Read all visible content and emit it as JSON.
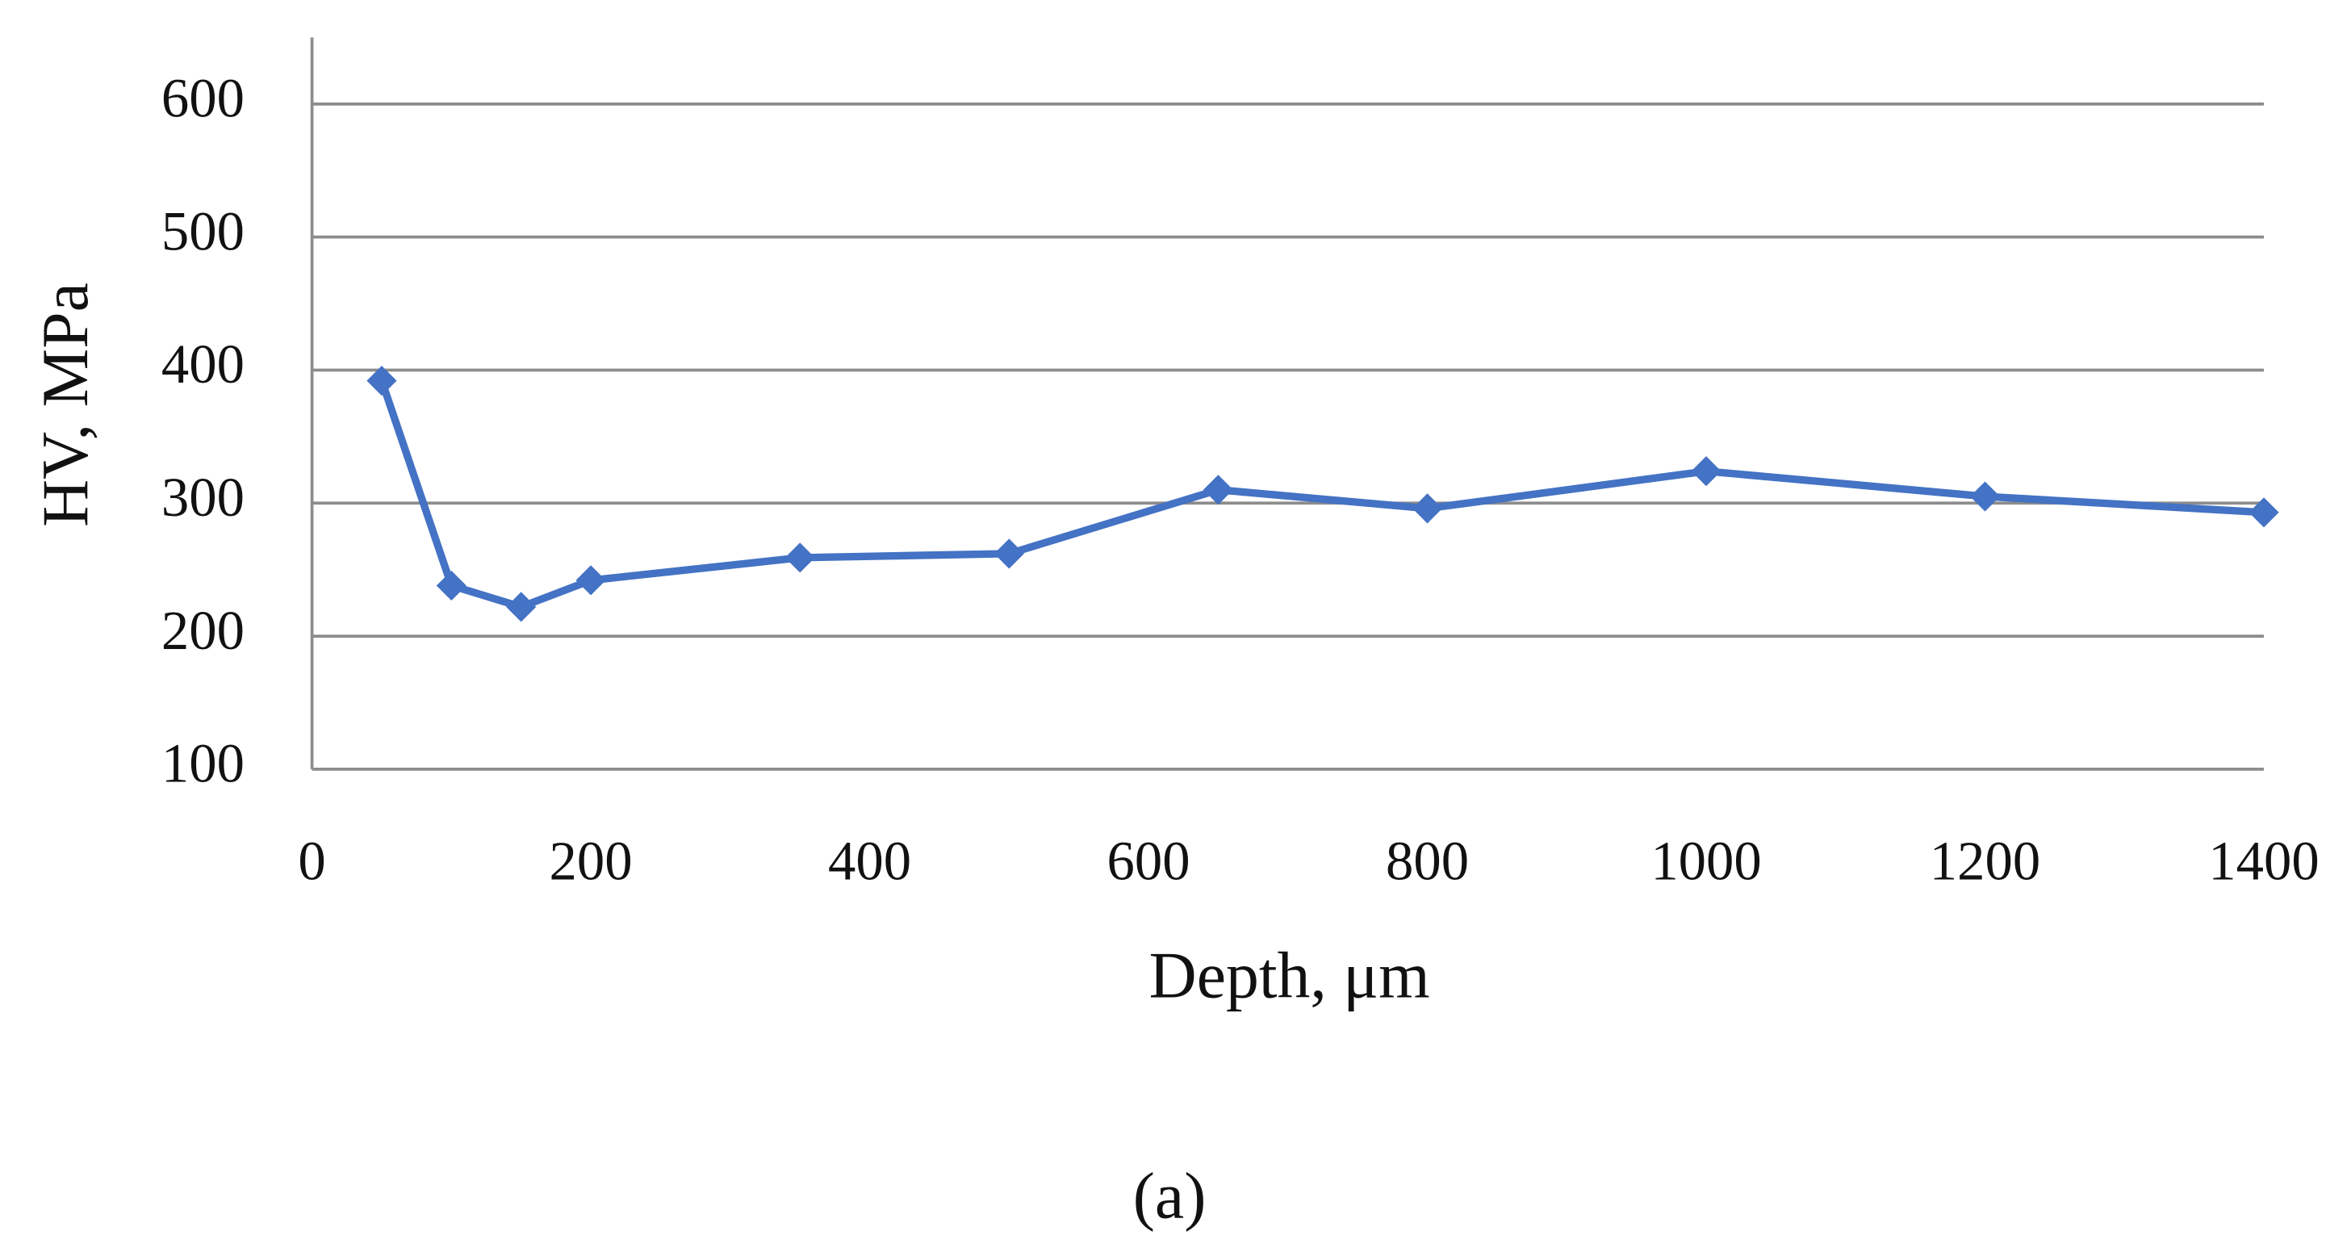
{
  "chart_data": {
    "type": "line",
    "x_label": "Depth, μm",
    "y_label": "HV, MPa",
    "caption": "(a)",
    "x": [
      50,
      100,
      150,
      200,
      350,
      500,
      650,
      800,
      1000,
      1200,
      1400
    ],
    "series": [
      {
        "color": "#4472c4",
        "values": [
          392,
          238,
          222,
          242,
          259,
          262,
          310,
          296,
          324,
          305,
          293
        ]
      }
    ],
    "xlim": [
      0,
      1400
    ],
    "xticks": [
      0,
      200,
      400,
      600,
      800,
      1000,
      1200,
      1400
    ],
    "ylim": [
      100,
      650
    ],
    "yticks": [
      100,
      200,
      300,
      400,
      500,
      600
    ],
    "grid": true,
    "markers": "diamond"
  }
}
